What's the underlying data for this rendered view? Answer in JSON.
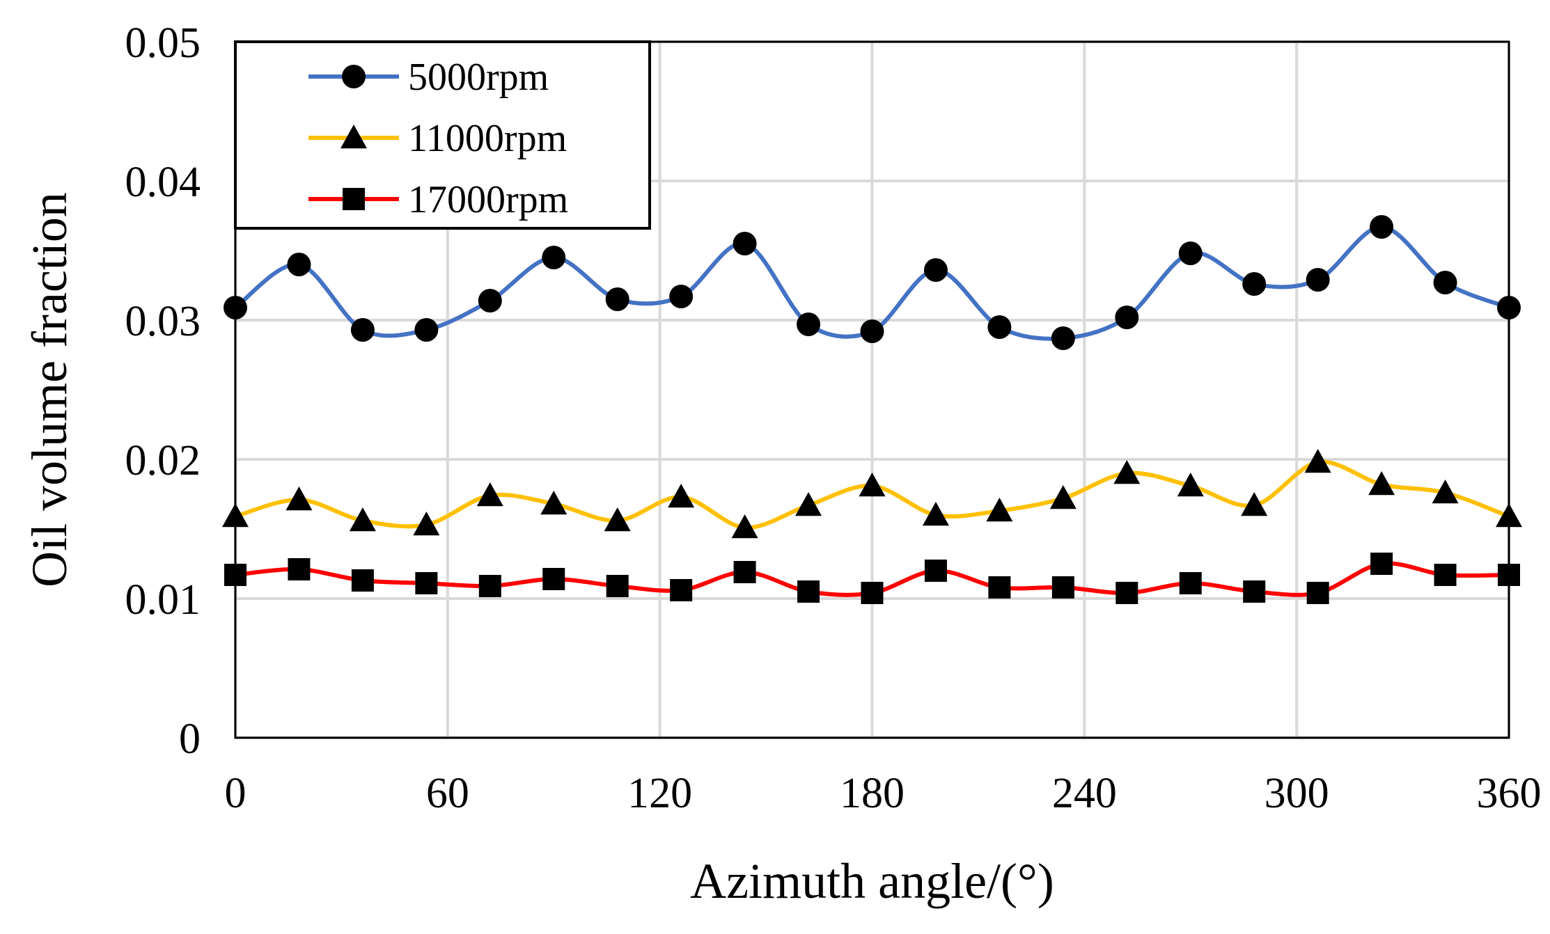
{
  "chart_data": {
    "type": "line",
    "title": "",
    "xlabel": "Azimuth angle/(°)",
    "ylabel": "Oil volume fraction",
    "xlim": [
      0,
      360
    ],
    "ylim": [
      0,
      0.05
    ],
    "x_ticks": [
      0,
      60,
      120,
      180,
      240,
      300,
      360
    ],
    "x_tick_labels": [
      "0",
      "60",
      "120",
      "180",
      "240",
      "300",
      "360"
    ],
    "y_ticks": [
      0,
      0.01,
      0.02,
      0.03,
      0.04,
      0.05
    ],
    "y_tick_labels": [
      "0",
      "0.01",
      "0.02",
      "0.03",
      "0.04",
      "0.05"
    ],
    "grid": true,
    "legend_position": "top-left",
    "x": [
      0,
      18,
      36,
      54,
      72,
      90,
      108,
      126,
      144,
      162,
      180,
      198,
      216,
      234,
      252,
      270,
      288,
      306,
      324,
      342,
      360
    ],
    "series": [
      {
        "name": "5000rpm",
        "color": "#4472C4",
        "marker": "circle",
        "values": [
          0.0309,
          0.034,
          0.0293,
          0.0293,
          0.0314,
          0.0345,
          0.0315,
          0.0317,
          0.0355,
          0.0297,
          0.0292,
          0.0336,
          0.0295,
          0.0287,
          0.0302,
          0.0348,
          0.0326,
          0.0329,
          0.0367,
          0.0327,
          0.0309
        ]
      },
      {
        "name": "11000rpm",
        "color": "#FFC000",
        "marker": "triangle",
        "values": [
          0.0159,
          0.0171,
          0.0156,
          0.0153,
          0.0174,
          0.0168,
          0.0156,
          0.0173,
          0.0151,
          0.0167,
          0.0181,
          0.016,
          0.0163,
          0.0172,
          0.019,
          0.0181,
          0.0167,
          0.0198,
          0.0182,
          0.0176,
          0.0159
        ]
      },
      {
        "name": "17000rpm",
        "color": "#FF0000",
        "marker": "square",
        "values": [
          0.0117,
          0.0121,
          0.0113,
          0.0111,
          0.0109,
          0.0114,
          0.0109,
          0.0106,
          0.0119,
          0.0105,
          0.0104,
          0.012,
          0.0108,
          0.0108,
          0.0104,
          0.0111,
          0.0105,
          0.0104,
          0.0125,
          0.0117,
          0.0117
        ]
      }
    ]
  }
}
